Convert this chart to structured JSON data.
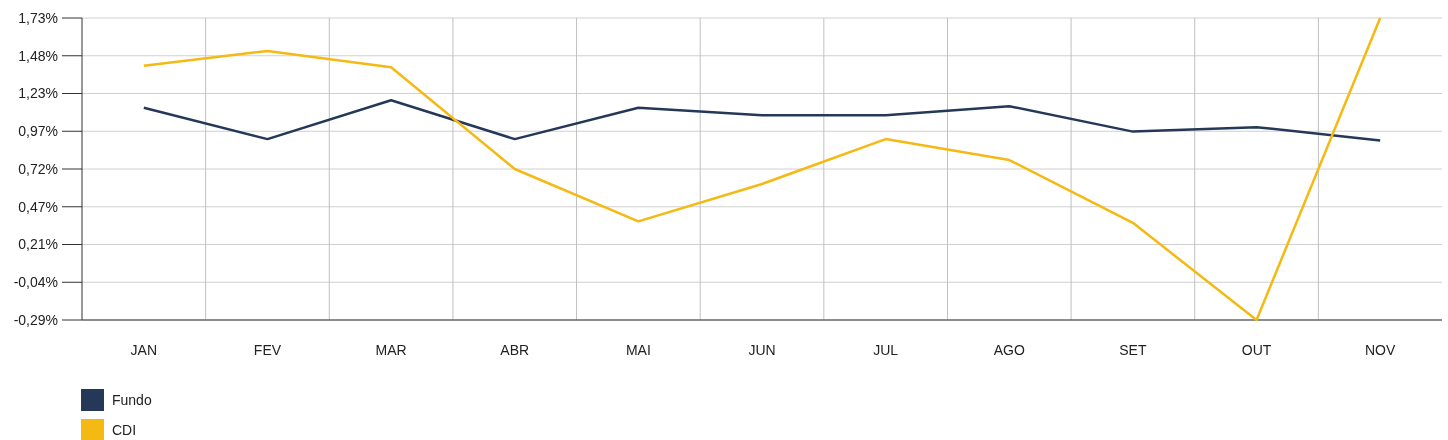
{
  "chart_data": {
    "type": "line",
    "categories": [
      "JAN",
      "FEV",
      "MAR",
      "ABR",
      "MAI",
      "JUN",
      "JUL",
      "AGO",
      "SET",
      "OUT",
      "NOV"
    ],
    "series": [
      {
        "name": "Fundo",
        "color": "#253858",
        "values": [
          1.13,
          0.92,
          1.18,
          0.92,
          1.13,
          1.08,
          1.08,
          1.14,
          0.97,
          1.0,
          0.91
        ]
      },
      {
        "name": "CDI",
        "color": "#f5b914",
        "values": [
          1.41,
          1.51,
          1.4,
          0.72,
          0.37,
          0.62,
          0.92,
          0.78,
          0.36,
          -0.29,
          1.73
        ]
      }
    ],
    "ylim": [
      -0.29,
      1.73
    ],
    "yticks": [
      {
        "value": -0.29,
        "label": "-0,29%"
      },
      {
        "value": -0.0375,
        "label": "-0,04%"
      },
      {
        "value": 0.215,
        "label": "0,21%"
      },
      {
        "value": 0.4675,
        "label": "0,47%"
      },
      {
        "value": 0.72,
        "label": "0,72%"
      },
      {
        "value": 0.9725,
        "label": "0,97%"
      },
      {
        "value": 1.225,
        "label": "1,23%"
      },
      {
        "value": 1.4775,
        "label": "1,48%"
      },
      {
        "value": 1.73,
        "label": "1,73%"
      }
    ],
    "grid": true,
    "legend": "bottom left",
    "line_style": "solid"
  }
}
